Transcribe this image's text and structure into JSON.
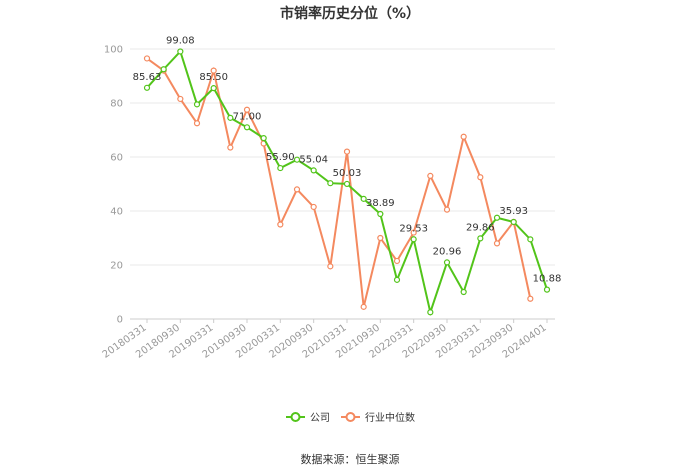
{
  "chart_data": {
    "type": "line",
    "title": "市销率历史分位（%）",
    "x": [
      "20180331",
      "20180630",
      "20180930",
      "20181231",
      "20190331",
      "20190630",
      "20190930",
      "20191231",
      "20200331",
      "20200630",
      "20200930",
      "20201231",
      "20210331",
      "20210630",
      "20210930",
      "20211231",
      "20220331",
      "20220630",
      "20220930",
      "20221231",
      "20230331",
      "20230630",
      "20230930",
      "20231231",
      "20240401"
    ],
    "x_tick_labels": [
      "20180331",
      "20180930",
      "20190331",
      "20190930",
      "20200331",
      "20200930",
      "20210331",
      "20210930",
      "20220331",
      "20220930",
      "20230331",
      "20230930",
      "20240401"
    ],
    "y_ticks": [
      0,
      20,
      40,
      60,
      80,
      100
    ],
    "ylim": [
      0,
      100
    ],
    "grid": true,
    "legend_position": "bottom",
    "series": [
      {
        "name": "公司",
        "color": "#52c41a",
        "values": [
          85.63,
          92.5,
          99.08,
          79.5,
          85.5,
          74.5,
          71.0,
          67.0,
          55.9,
          59.0,
          55.04,
          50.3,
          50.03,
          44.5,
          38.89,
          14.5,
          29.53,
          2.5,
          20.96,
          10.0,
          29.86,
          37.5,
          35.93,
          29.5,
          10.88
        ],
        "labels": [
          "85.63",
          "",
          "99.08",
          "",
          "85.50",
          "",
          "71.00",
          "",
          "55.90",
          "",
          "55.04",
          "",
          "50.03",
          "",
          "38.89",
          "",
          "29.53",
          "",
          "20.96",
          "",
          "29.86",
          "",
          "35.93",
          "",
          "10.88"
        ]
      },
      {
        "name": "行业中位数",
        "color": "#f4895f",
        "values": [
          96.5,
          92.0,
          81.5,
          72.5,
          92.0,
          63.5,
          77.5,
          65.0,
          35.0,
          48.0,
          41.5,
          19.5,
          62.0,
          4.5,
          30.0,
          21.5,
          32.0,
          53.0,
          40.5,
          67.5,
          52.5,
          28.0,
          36.0,
          7.5,
          null
        ]
      }
    ]
  },
  "legend": {
    "items": [
      {
        "label": "公司",
        "color": "#52c41a"
      },
      {
        "label": "行业中位数",
        "color": "#f4895f"
      }
    ]
  },
  "source": "数据来源：恒生聚源"
}
